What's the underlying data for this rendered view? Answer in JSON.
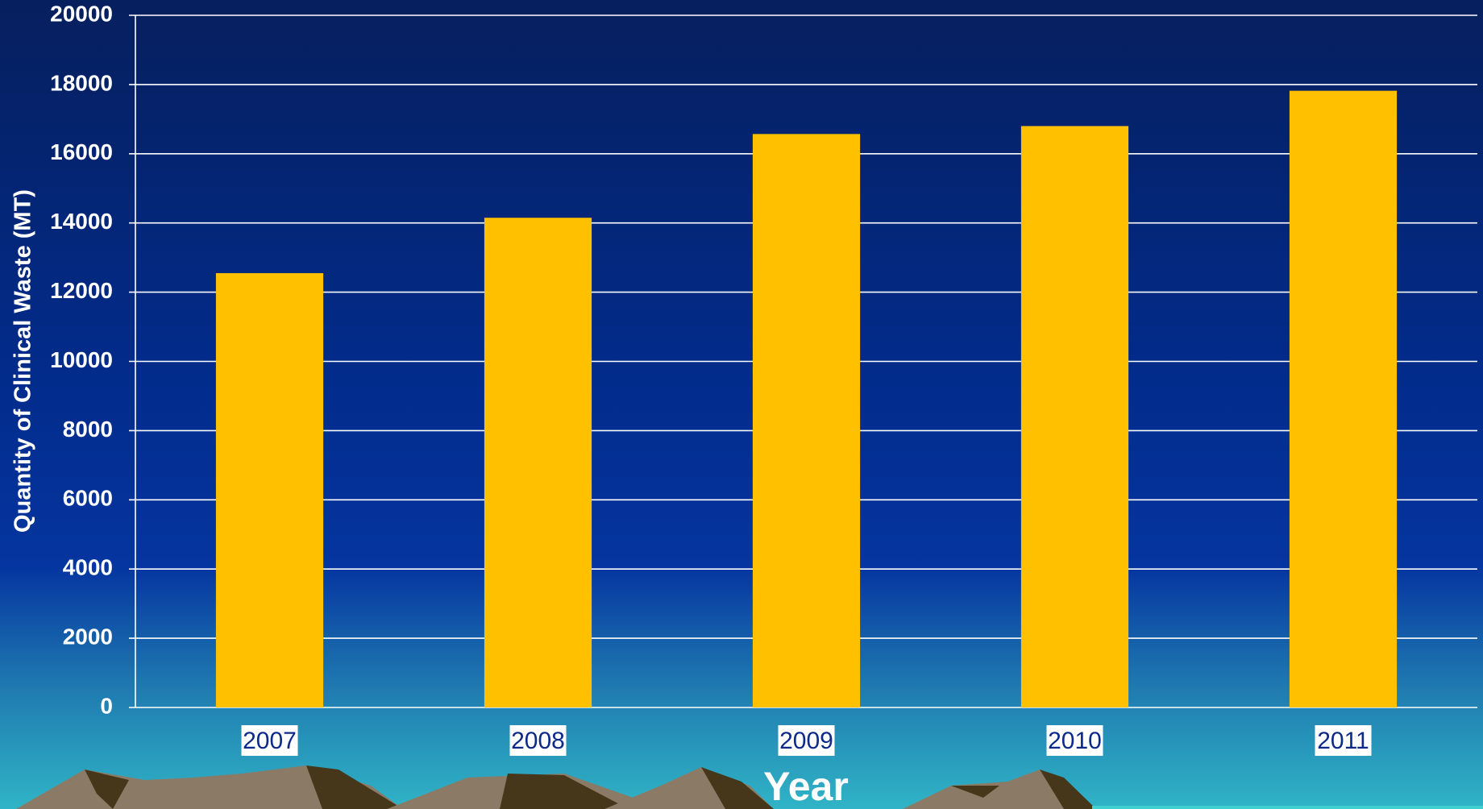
{
  "chart_data": {
    "type": "bar",
    "y_label": "Quantity of Clinical Waste (MT)",
    "x_label": "Year",
    "categories": [
      "2007",
      "2008",
      "2009",
      "2010",
      "2011"
    ],
    "values": [
      12550,
      14150,
      16570,
      16800,
      17820
    ],
    "color": "#ffc000",
    "ylim": [
      0,
      20000
    ],
    "yticks": [
      0,
      2000,
      4000,
      6000,
      8000,
      10000,
      12000,
      14000,
      16000,
      18000,
      20000
    ],
    "grid": true
  }
}
